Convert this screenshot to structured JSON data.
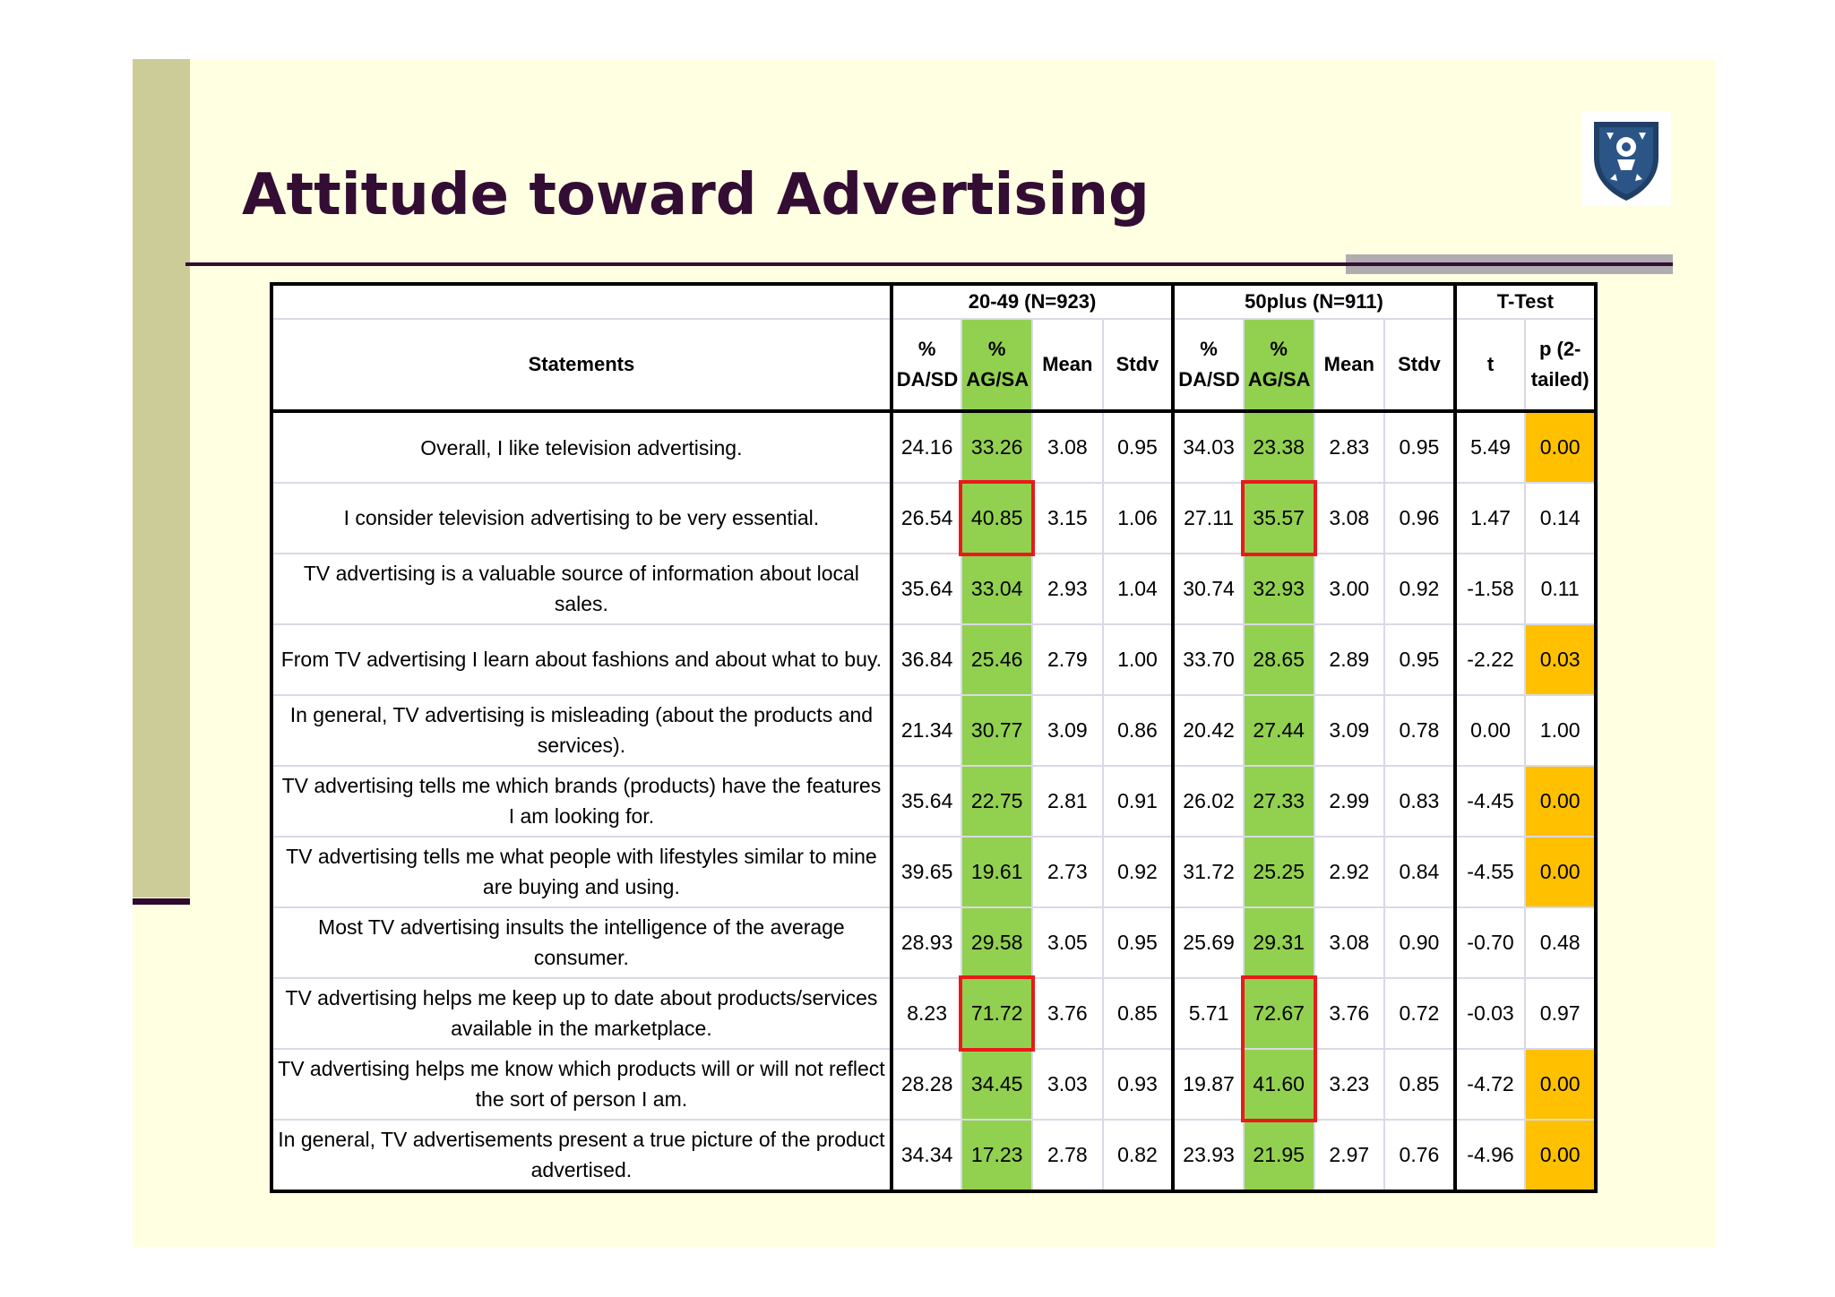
{
  "slide": {
    "title": "Attitude toward Advertising",
    "colors": {
      "background": "#ffffe2",
      "title": "#330d33",
      "sidebar": "#cccc99",
      "green_column": "#92d050",
      "orange_highlight": "#ffc000",
      "red_box": "#e81a1a"
    },
    "logo": "shield-crest-icon"
  },
  "table": {
    "groups": {
      "young": "20-49 (N=923)",
      "old": "50plus (N=911)",
      "ttest": "T-Test"
    },
    "headers": {
      "statements": "Statements",
      "pct_dasd_1": "%",
      "pct_dasd_2": "DA/SD",
      "pct_agsa_1": "%",
      "pct_agsa_2": "AG/SA",
      "mean": "Mean",
      "stdv": "Stdv",
      "t": "t",
      "p_1": "p (2-",
      "p_2": "tailed)"
    },
    "rows": [
      {
        "statement": "Overall, I like television advertising.",
        "y_dasd": "24.16",
        "y_agsa": "33.26",
        "y_mean": "3.08",
        "y_stdv": "0.95",
        "o_dasd": "34.03",
        "o_agsa": "23.38",
        "o_mean": "2.83",
        "o_stdv": "0.95",
        "t": "5.49",
        "p": "0.00"
      },
      {
        "statement": "I consider television advertising to be very essential.",
        "y_dasd": "26.54",
        "y_agsa": "40.85",
        "y_mean": "3.15",
        "y_stdv": "1.06",
        "o_dasd": "27.11",
        "o_agsa": "35.57",
        "o_mean": "3.08",
        "o_stdv": "0.96",
        "t": "1.47",
        "p": "0.14"
      },
      {
        "statement": "TV advertising is a valuable source of information about local sales.",
        "y_dasd": "35.64",
        "y_agsa": "33.04",
        "y_mean": "2.93",
        "y_stdv": "1.04",
        "o_dasd": "30.74",
        "o_agsa": "32.93",
        "o_mean": "3.00",
        "o_stdv": "0.92",
        "t": "-1.58",
        "p": "0.11"
      },
      {
        "statement": "From TV advertising I learn about fashions and about what to buy.",
        "y_dasd": "36.84",
        "y_agsa": "25.46",
        "y_mean": "2.79",
        "y_stdv": "1.00",
        "o_dasd": "33.70",
        "o_agsa": "28.65",
        "o_mean": "2.89",
        "o_stdv": "0.95",
        "t": "-2.22",
        "p": "0.03"
      },
      {
        "statement": "In general, TV advertising is misleading (about the products and services).",
        "y_dasd": "21.34",
        "y_agsa": "30.77",
        "y_mean": "3.09",
        "y_stdv": "0.86",
        "o_dasd": "20.42",
        "o_agsa": "27.44",
        "o_mean": "3.09",
        "o_stdv": "0.78",
        "t": "0.00",
        "p": "1.00"
      },
      {
        "statement": "TV advertising tells me which brands (products) have the features I am looking for.",
        "y_dasd": "35.64",
        "y_agsa": "22.75",
        "y_mean": "2.81",
        "y_stdv": "0.91",
        "o_dasd": "26.02",
        "o_agsa": "27.33",
        "o_mean": "2.99",
        "o_stdv": "0.83",
        "t": "-4.45",
        "p": "0.00"
      },
      {
        "statement": "TV advertising tells me what people with lifestyles similar to mine are buying and using.",
        "y_dasd": "39.65",
        "y_agsa": "19.61",
        "y_mean": "2.73",
        "y_stdv": "0.92",
        "o_dasd": "31.72",
        "o_agsa": "25.25",
        "o_mean": "2.92",
        "o_stdv": "0.84",
        "t": "-4.55",
        "p": "0.00"
      },
      {
        "statement": "Most TV advertising insults the intelligence of the average consumer.",
        "y_dasd": "28.93",
        "y_agsa": "29.58",
        "y_mean": "3.05",
        "y_stdv": "0.95",
        "o_dasd": "25.69",
        "o_agsa": "29.31",
        "o_mean": "3.08",
        "o_stdv": "0.90",
        "t": "-0.70",
        "p": "0.48"
      },
      {
        "statement": "TV advertising helps me keep up to date about products/services available in the marketplace.",
        "y_dasd": "8.23",
        "y_agsa": "71.72",
        "y_mean": "3.76",
        "y_stdv": "0.85",
        "o_dasd": "5.71",
        "o_agsa": "72.67",
        "o_mean": "3.76",
        "o_stdv": "0.72",
        "t": "-0.03",
        "p": "0.97"
      },
      {
        "statement": "TV advertising helps me know which products will or will not reflect the sort of person I am.",
        "y_dasd": "28.28",
        "y_agsa": "34.45",
        "y_mean": "3.03",
        "y_stdv": "0.93",
        "o_dasd": "19.87",
        "o_agsa": "41.60",
        "o_mean": "3.23",
        "o_stdv": "0.85",
        "t": "-4.72",
        "p": "0.00"
      },
      {
        "statement": "In general, TV advertisements present a true picture of the product advertised.",
        "y_dasd": "34.34",
        "y_agsa": "17.23",
        "y_mean": "2.78",
        "y_stdv": "0.82",
        "o_dasd": "23.93",
        "o_agsa": "21.95",
        "o_mean": "2.97",
        "o_stdv": "0.76",
        "t": "-4.96",
        "p": "0.00"
      }
    ],
    "orange_p_rows": [
      0,
      3,
      5,
      6,
      9,
      10
    ],
    "red_boxes": [
      {
        "column": "y_agsa",
        "rows": [
          1
        ]
      },
      {
        "column": "o_agsa",
        "rows": [
          1
        ]
      },
      {
        "column": "y_agsa",
        "rows": [
          8
        ]
      },
      {
        "column": "o_agsa",
        "rows": [
          8,
          9
        ]
      }
    ]
  }
}
